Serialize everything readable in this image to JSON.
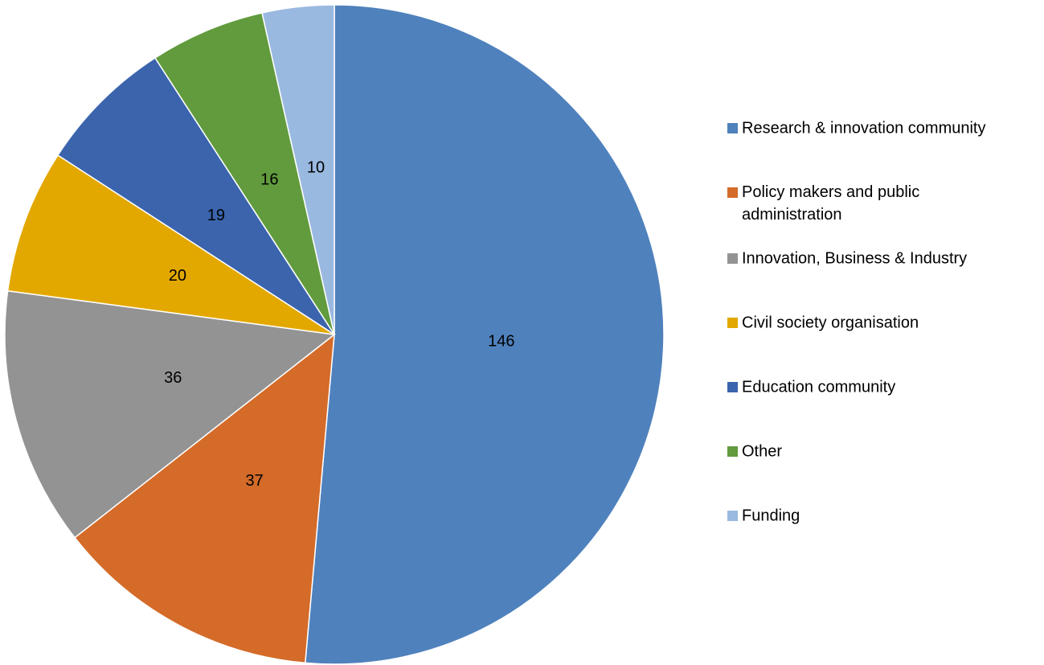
{
  "chart_data": {
    "type": "pie",
    "categories": [
      "Research & innovation community",
      "Policy makers and public administration",
      "Innovation, Business & Industry",
      "Civil society organisation",
      "Education community",
      "Other",
      "Funding"
    ],
    "values": [
      146,
      37,
      36,
      20,
      19,
      16,
      10
    ],
    "colors": [
      "#4f81bd",
      "#d46b29",
      "#939393",
      "#e3a800",
      "#3b64ad",
      "#619b3d",
      "#9ab9e0"
    ],
    "legend": "right"
  }
}
